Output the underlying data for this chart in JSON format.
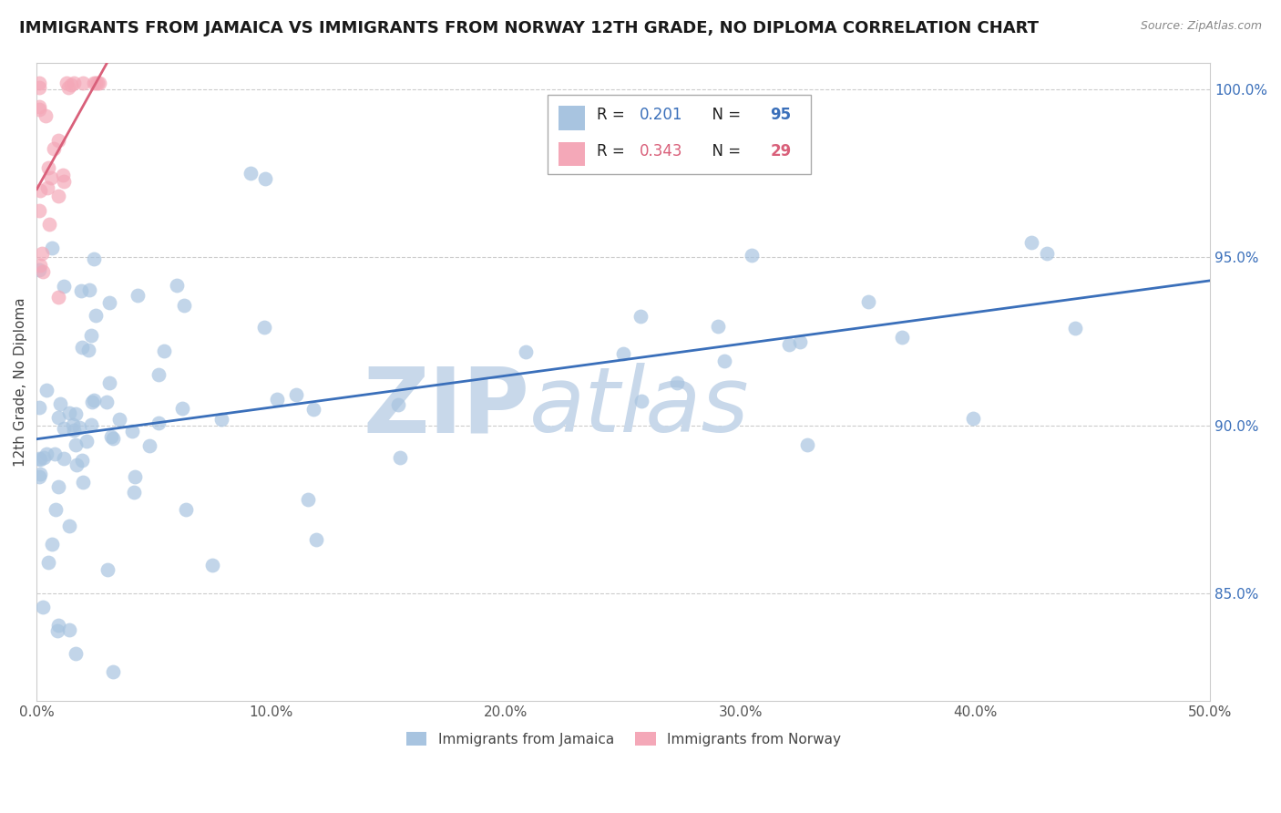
{
  "title": "IMMIGRANTS FROM JAMAICA VS IMMIGRANTS FROM NORWAY 12TH GRADE, NO DIPLOMA CORRELATION CHART",
  "source": "Source: ZipAtlas.com",
  "ylabel": "12th Grade, No Diploma",
  "xlim": [
    0.0,
    0.5
  ],
  "ylim": [
    0.818,
    1.008
  ],
  "xticks": [
    0.0,
    0.1,
    0.2,
    0.3,
    0.4,
    0.5
  ],
  "xticklabels": [
    "0.0%",
    "10.0%",
    "20.0%",
    "30.0%",
    "40.0%",
    "50.0%"
  ],
  "yticks": [
    0.85,
    0.9,
    0.95,
    1.0
  ],
  "yticklabels": [
    "85.0%",
    "90.0%",
    "95.0%",
    "100.0%"
  ],
  "jamaica_color": "#a8c4e0",
  "norway_color": "#f4a8b8",
  "jamaica_line_color": "#3a6fba",
  "norway_line_color": "#d9607a",
  "jamaica_R": 0.201,
  "jamaica_N": 95,
  "norway_R": 0.343,
  "norway_N": 29,
  "watermark_zip": "ZIP",
  "watermark_atlas": "atlas",
  "watermark_color": "#c8d8ea",
  "background_color": "#ffffff",
  "grid_color": "#cccccc",
  "title_fontsize": 13,
  "axis_label_fontsize": 11,
  "tick_fontsize": 11,
  "legend_label_jamaica": "Immigrants from Jamaica",
  "legend_label_norway": "Immigrants from Norway"
}
